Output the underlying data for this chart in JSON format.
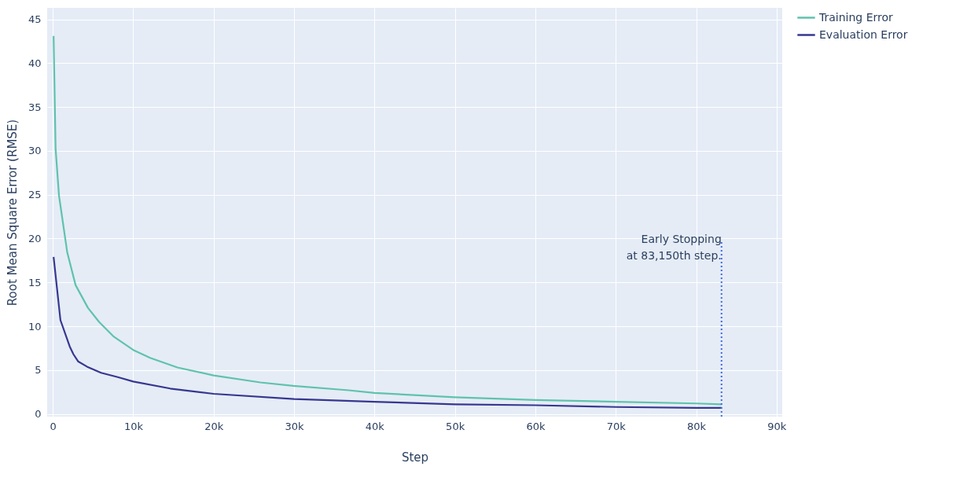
{
  "chart_data": {
    "type": "line",
    "xlabel": "Step",
    "ylabel": "Root Mean Square Error (RMSE)",
    "xlim": [
      -700,
      90700
    ],
    "ylim": [
      -0.3,
      46.3
    ],
    "xticks": [
      0,
      {
        "value": 10000,
        "label": "10k"
      },
      {
        "value": 20000,
        "label": "20k"
      },
      {
        "value": 30000,
        "label": "30k"
      },
      {
        "value": 40000,
        "label": "40k"
      },
      {
        "value": 50000,
        "label": "50k"
      },
      {
        "value": 60000,
        "label": "60k"
      },
      {
        "value": 70000,
        "label": "70k"
      },
      {
        "value": 80000,
        "label": "80k"
      },
      {
        "value": 90000,
        "label": "90k"
      }
    ],
    "yticks": [
      0,
      5,
      10,
      15,
      20,
      25,
      30,
      35,
      40,
      45
    ],
    "grid": true,
    "legend": "top right",
    "marker": "none",
    "line_style": "solid",
    "series": [
      {
        "name": "Training Error",
        "color": "#5fc2ad",
        "x": [
          100,
          350,
          770,
          1800,
          2830,
          4370,
          5750,
          7600,
          10000,
          12100,
          15500,
          20000,
          25800,
          29900,
          36800,
          40000,
          50000,
          60000,
          70000,
          80000,
          83150
        ],
        "values": [
          43.1,
          30.2,
          24.9,
          18.4,
          14.7,
          12.1,
          10.5,
          8.8,
          7.3,
          6.4,
          5.3,
          4.4,
          3.6,
          3.2,
          2.7,
          2.4,
          1.9,
          1.6,
          1.4,
          1.2,
          1.1
        ]
      },
      {
        "name": "Evaluation Error",
        "color": "#37378f",
        "x": [
          100,
          950,
          2100,
          2570,
          3140,
          4250,
          6000,
          8080,
          10000,
          14600,
          20000,
          30000,
          40000,
          50000,
          60000,
          70000,
          80000,
          83150
        ],
        "values": [
          17.9,
          10.7,
          7.7,
          6.8,
          6.0,
          5.4,
          4.7,
          4.2,
          3.7,
          2.9,
          2.3,
          1.7,
          1.4,
          1.1,
          1.0,
          0.8,
          0.7,
          0.7
        ]
      }
    ],
    "ref_lines": [
      {
        "axis": "x",
        "value": 83150,
        "label": "Early Stopping\nat 83,150th step.",
        "color": "#4169e1",
        "line_style": "dotted"
      }
    ]
  }
}
